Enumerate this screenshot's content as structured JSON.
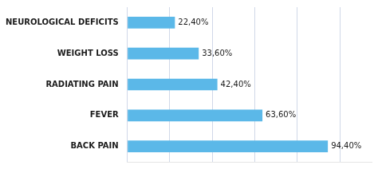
{
  "chart_data": {
    "type": "bar",
    "orientation": "horizontal",
    "categories": [
      "NEUROLOGICAL DEFICITS",
      "WEIGHT LOSS",
      "RADIATING PAIN",
      "FEVER",
      "BACK PAIN"
    ],
    "values": [
      22.4,
      33.6,
      42.4,
      63.6,
      94.4
    ],
    "value_labels": [
      "22,40%",
      "33,60%",
      "42,40%",
      "63,60%",
      "94,40%"
    ],
    "data_labels": true,
    "color": "#5bb8e8",
    "xlim": [
      0,
      115
    ],
    "xticks": [
      0,
      20,
      40,
      60,
      80,
      100
    ],
    "grid": true,
    "tick_labels": "y"
  }
}
